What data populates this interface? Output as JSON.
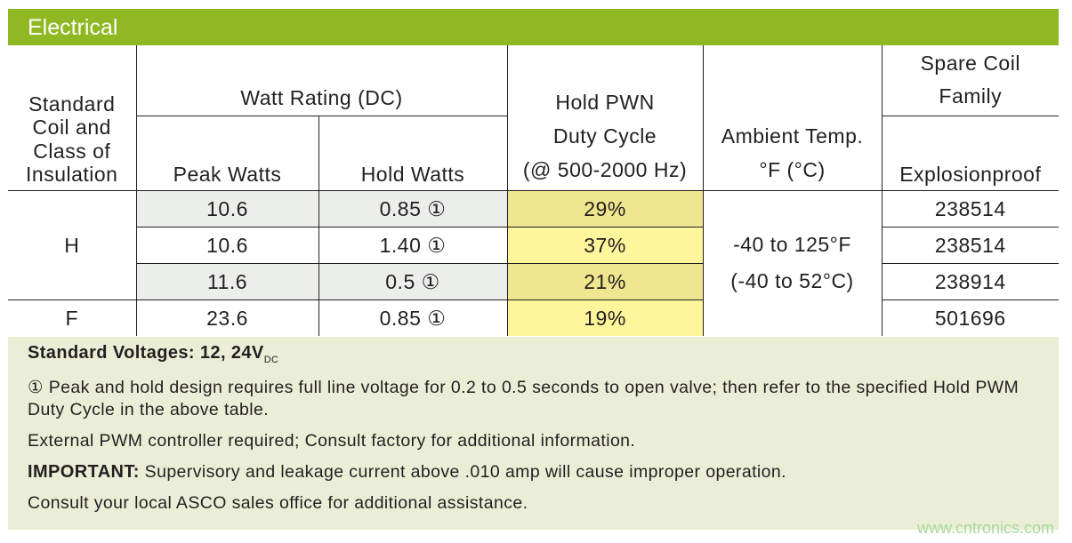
{
  "section_title": "Electrical",
  "headers": {
    "coil_class": "Standard Coil and Class of Insulation",
    "watt_rating": "Watt Rating (DC)",
    "peak_watts": "Peak Watts",
    "hold_watts": "Hold Watts",
    "duty_cycle_l1": "Hold PWN",
    "duty_cycle_l2": "Duty Cycle",
    "duty_cycle_l3": "(@ 500-2000 Hz)",
    "ambient_l1": "Ambient Temp.",
    "ambient_l2": "°F (°C)",
    "spare_coil": "Spare Coil Family",
    "explosionproof": "Explosionproof"
  },
  "rows": [
    {
      "coil": "H",
      "peak": "10.6",
      "hold": "0.85 ①",
      "duty": "29%",
      "spare": "238514"
    },
    {
      "peak": "10.6",
      "hold": "1.40 ①",
      "duty": "37%",
      "spare": "238514"
    },
    {
      "peak": "11.6",
      "hold": "0.5 ①",
      "duty": "21%",
      "spare": "238914"
    },
    {
      "coil": "F",
      "peak": "23.6",
      "hold": "0.85 ①",
      "duty": "19%",
      "spare": "501696"
    }
  ],
  "ambient": {
    "f": "-40 to 125°F",
    "c": "(-40 to 52°C)"
  },
  "notes": {
    "voltages_label": "Standard Voltages: 12, 24V",
    "voltages_sub": "DC",
    "note1": "① Peak and hold design requires full line voltage for 0.2 to 0.5 seconds to open valve; then refer to the specified Hold PWM Duty Cycle in the above table.",
    "note2": "External PWM controller required; Consult factory for additional information.",
    "important_label": "IMPORTANT:",
    "important_text": " Supervisory and leakage current above .010 amp will cause improper operation.",
    "note4": "Consult your local ASCO sales office for additional assistance."
  },
  "watermark": "www.cntronics.com",
  "colors": {
    "header": "#8fb822",
    "footer_bg": "#eaeed6",
    "gray_cell": "#eceeec",
    "yellow_dark": "#f0e68f",
    "yellow_light": "#fff59b"
  }
}
